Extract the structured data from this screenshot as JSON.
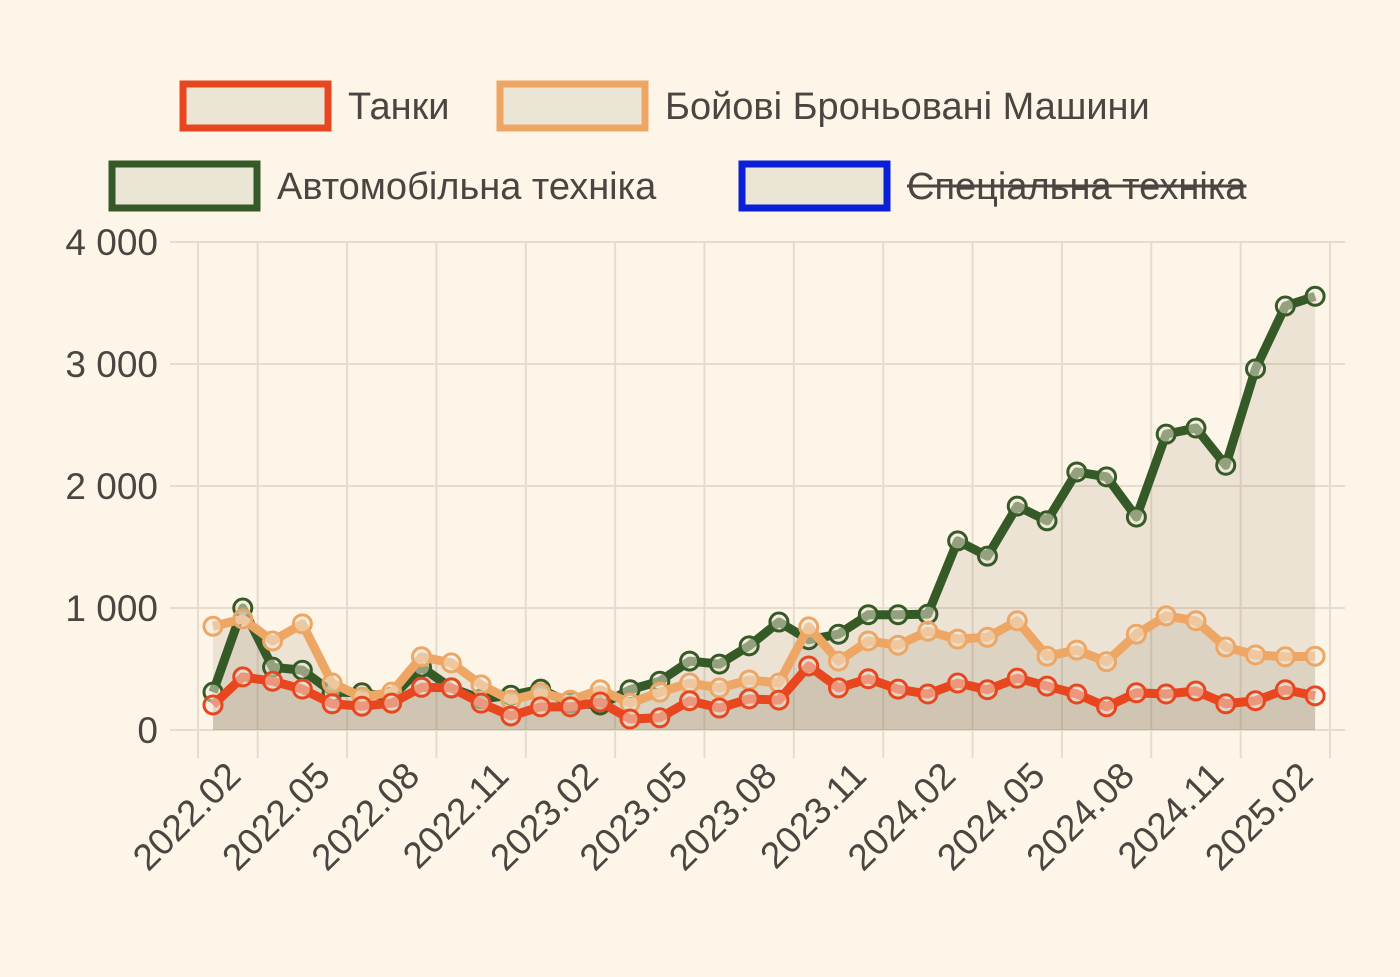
{
  "chart_data": {
    "type": "line",
    "categories": [
      null,
      "2022.02",
      null,
      null,
      "2022.05",
      null,
      null,
      "2022.08",
      null,
      null,
      "2022.11",
      null,
      null,
      "2023.02",
      null,
      null,
      "2023.05",
      null,
      null,
      "2023.08",
      null,
      null,
      "2023.11",
      null,
      null,
      "2024.02",
      null,
      null,
      "2024.05",
      null,
      null,
      "2024.08",
      null,
      null,
      "2024.11",
      null,
      null,
      "2025.02"
    ],
    "series": [
      {
        "name": "Танки",
        "color": "#e8461f",
        "values": [
          205,
          435,
          400,
          335,
          215,
          195,
          220,
          350,
          345,
          220,
          115,
          190,
          190,
          230,
          90,
          100,
          240,
          180,
          255,
          245,
          525,
          345,
          420,
          335,
          295,
          385,
          330,
          425,
          360,
          295,
          190,
          305,
          295,
          320,
          215,
          240,
          330,
          280
        ]
      },
      {
        "name": "Бойові Броньовані Машини",
        "color": "#eda664",
        "values": [
          850,
          910,
          730,
          870,
          385,
          270,
          310,
          600,
          550,
          370,
          245,
          305,
          245,
          330,
          220,
          310,
          385,
          345,
          410,
          385,
          845,
          565,
          730,
          695,
          810,
          745,
          760,
          895,
          605,
          655,
          560,
          785,
          935,
          895,
          680,
          615,
          600,
          605
        ]
      },
      {
        "name": "Автомобільна техніка",
        "color": "#365a27",
        "values": [
          310,
          1000,
          515,
          490,
          310,
          305,
          270,
          515,
          345,
          255,
          285,
          335,
          220,
          205,
          330,
          400,
          565,
          540,
          690,
          885,
          740,
          785,
          945,
          945,
          950,
          1550,
          1425,
          1835,
          1715,
          2115,
          2075,
          1745,
          2425,
          2475,
          2170,
          2960,
          3475,
          3555
        ]
      },
      {
        "name": "Спеціальна техніка",
        "color": "#0a1fd6",
        "hidden": true
      }
    ],
    "ylim": [
      0,
      4000
    ],
    "yticks": [
      0,
      {
        "value": 1000,
        "label": "1 000"
      },
      {
        "value": 2000,
        "label": "2 000"
      },
      {
        "value": 3000,
        "label": "3 000"
      },
      {
        "value": 4000,
        "label": "4 000"
      }
    ],
    "grid": true
  }
}
